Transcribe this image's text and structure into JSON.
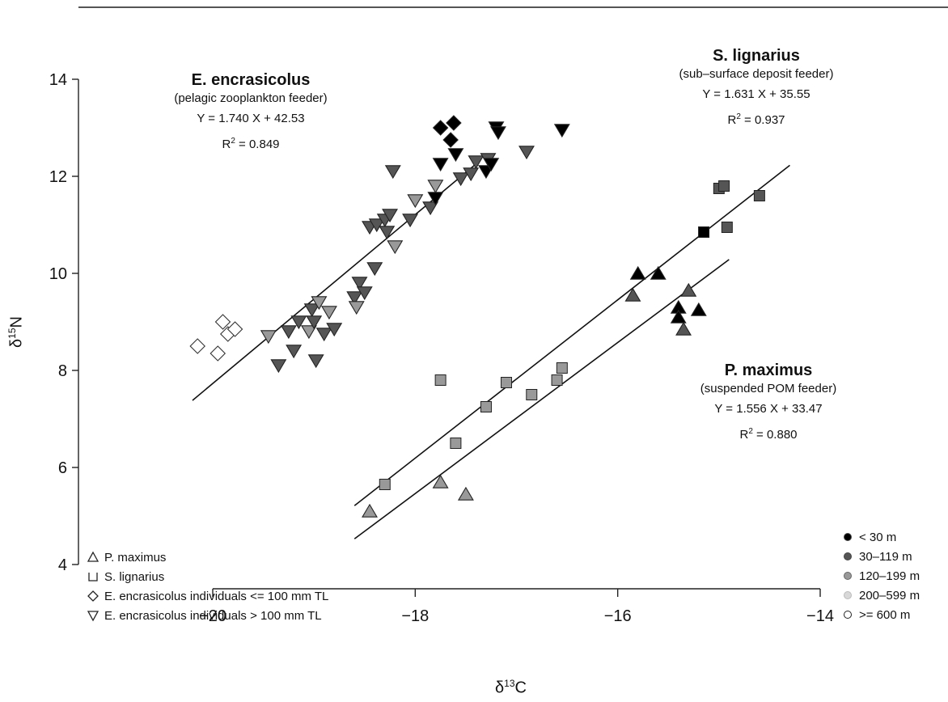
{
  "chart_data": {
    "type": "scatter",
    "xlabel": "δ13C",
    "ylabel": "δ15N",
    "xlim": [
      -20.5,
      -14
    ],
    "ylim": [
      4,
      14
    ],
    "x_ticks": [
      "−20",
      "−18",
      "−16",
      "−14"
    ],
    "y_ticks": [
      "4",
      "6",
      "8",
      "10",
      "12",
      "14"
    ],
    "grid": false,
    "species_legend": {
      "placement": "bottom-left",
      "entries": [
        {
          "symbol": "triangle",
          "label": "P. maximus"
        },
        {
          "symbol": "square",
          "label": "S. lignarius"
        },
        {
          "symbol": "diamond",
          "label": "E. encrasicolus individuals <= 100 mm TL"
        },
        {
          "symbol": "inverted-triangle",
          "label": "E. encrasicolus individuals > 100 mm TL"
        }
      ]
    },
    "depth_legend": {
      "placement": "bottom-right",
      "entries": [
        {
          "label": "< 30 m",
          "color": "#000000"
        },
        {
          "label": "30–119 m",
          "color": "#555555"
        },
        {
          "label": "120–199 m",
          "color": "#999999"
        },
        {
          "label": "200–599 m",
          "color": "#d8d8d8"
        },
        {
          "label": ">= 600 m",
          "color": "#ffffff"
        }
      ]
    },
    "annotations": [
      {
        "species": "E. encrasicolus",
        "feeder": "(pelagic zooplankton feeder)",
        "equation": "Y = 1.740 X + 42.53",
        "r2_label": "R",
        "r2_value": " = 0.849"
      },
      {
        "species": "S. lignarius",
        "feeder": "(sub–surface deposit feeder)",
        "equation": "Y = 1.631 X + 35.55",
        "r2_label": "R",
        "r2_value": " = 0.937"
      },
      {
        "species": "P. maximus",
        "feeder": "(suspended POM feeder)",
        "equation": "Y = 1.556 X + 33.47",
        "r2_label": "R",
        "r2_value": " = 0.880"
      }
    ],
    "regression_lines": [
      {
        "species": "E. encrasicolus",
        "slope": 1.74,
        "intercept": 42.53,
        "x_range": [
          -20.2,
          -17.4
        ]
      },
      {
        "species": "S. lignarius",
        "slope": 1.631,
        "intercept": 35.55,
        "x_range": [
          -18.6,
          -14.3
        ]
      },
      {
        "species": "P. maximus",
        "slope": 1.556,
        "intercept": 33.47,
        "x_range": [
          -18.6,
          -14.9
        ]
      }
    ],
    "series": [
      {
        "species": "E. encrasicolus",
        "size": "<= 100 mm TL",
        "symbol": "diamond",
        "points": [
          [
            -20.15,
            8.5,
            4
          ],
          [
            -19.95,
            8.35,
            4
          ],
          [
            -19.9,
            9.0,
            4
          ],
          [
            -19.85,
            8.75,
            4
          ],
          [
            -19.78,
            8.85,
            4
          ],
          [
            -17.75,
            13.0,
            0
          ],
          [
            -17.65,
            12.75,
            0
          ],
          [
            -17.62,
            13.1,
            0
          ]
        ]
      },
      {
        "species": "E. encrasicolus",
        "size": "> 100 mm TL",
        "symbol": "inverted-triangle",
        "points": [
          [
            -19.45,
            8.7,
            2
          ],
          [
            -19.35,
            8.1,
            1
          ],
          [
            -19.25,
            8.8,
            1
          ],
          [
            -19.2,
            8.4,
            1
          ],
          [
            -19.15,
            9.0,
            1
          ],
          [
            -19.05,
            8.8,
            2
          ],
          [
            -19.02,
            9.25,
            1
          ],
          [
            -19.0,
            9.0,
            1
          ],
          [
            -18.98,
            8.2,
            1
          ],
          [
            -18.95,
            9.4,
            2
          ],
          [
            -18.9,
            8.75,
            1
          ],
          [
            -18.85,
            9.2,
            2
          ],
          [
            -18.8,
            8.85,
            1
          ],
          [
            -18.6,
            9.5,
            1
          ],
          [
            -18.58,
            9.3,
            2
          ],
          [
            -18.55,
            9.8,
            1
          ],
          [
            -18.5,
            9.6,
            1
          ],
          [
            -18.45,
            10.95,
            1
          ],
          [
            -18.4,
            10.1,
            1
          ],
          [
            -18.38,
            11.0,
            1
          ],
          [
            -18.3,
            11.1,
            1
          ],
          [
            -18.28,
            10.85,
            1
          ],
          [
            -18.25,
            11.2,
            1
          ],
          [
            -18.22,
            12.1,
            1
          ],
          [
            -18.2,
            10.55,
            2
          ],
          [
            -18.05,
            11.1,
            1
          ],
          [
            -18.0,
            11.5,
            2
          ],
          [
            -17.85,
            11.35,
            1
          ],
          [
            -17.8,
            11.8,
            2
          ],
          [
            -17.8,
            11.55,
            0
          ],
          [
            -17.75,
            12.25,
            0
          ],
          [
            -17.6,
            12.45,
            0
          ],
          [
            -17.55,
            11.95,
            1
          ],
          [
            -17.45,
            12.05,
            1
          ],
          [
            -17.4,
            12.3,
            1
          ],
          [
            -17.3,
            12.1,
            0
          ],
          [
            -17.28,
            12.35,
            1
          ],
          [
            -17.25,
            12.25,
            0
          ],
          [
            -17.2,
            13.0,
            0
          ],
          [
            -17.18,
            12.9,
            0
          ],
          [
            -16.9,
            12.5,
            1
          ],
          [
            -16.55,
            12.95,
            0
          ]
        ]
      },
      {
        "species": "S. lignarius",
        "symbol": "square",
        "points": [
          [
            -18.3,
            5.65,
            2
          ],
          [
            -17.75,
            7.8,
            2
          ],
          [
            -17.6,
            6.5,
            2
          ],
          [
            -17.3,
            7.25,
            2
          ],
          [
            -17.1,
            7.75,
            2
          ],
          [
            -16.85,
            7.5,
            2
          ],
          [
            -16.6,
            7.8,
            2
          ],
          [
            -16.55,
            8.05,
            2
          ],
          [
            -15.15,
            10.85,
            0
          ],
          [
            -15.0,
            11.75,
            1
          ],
          [
            -14.95,
            11.8,
            1
          ],
          [
            -14.92,
            10.95,
            1
          ],
          [
            -14.6,
            11.6,
            1
          ]
        ]
      },
      {
        "species": "P. maximus",
        "symbol": "triangle",
        "points": [
          [
            -18.45,
            5.1,
            2
          ],
          [
            -17.75,
            5.7,
            2
          ],
          [
            -17.5,
            5.45,
            2
          ],
          [
            -15.85,
            9.55,
            1
          ],
          [
            -15.8,
            10.0,
            0
          ],
          [
            -15.6,
            10.0,
            0
          ],
          [
            -15.4,
            9.3,
            0
          ],
          [
            -15.4,
            9.1,
            0
          ],
          [
            -15.35,
            8.85,
            1
          ],
          [
            -15.3,
            9.65,
            1
          ],
          [
            -15.2,
            9.25,
            0
          ]
        ]
      }
    ]
  }
}
